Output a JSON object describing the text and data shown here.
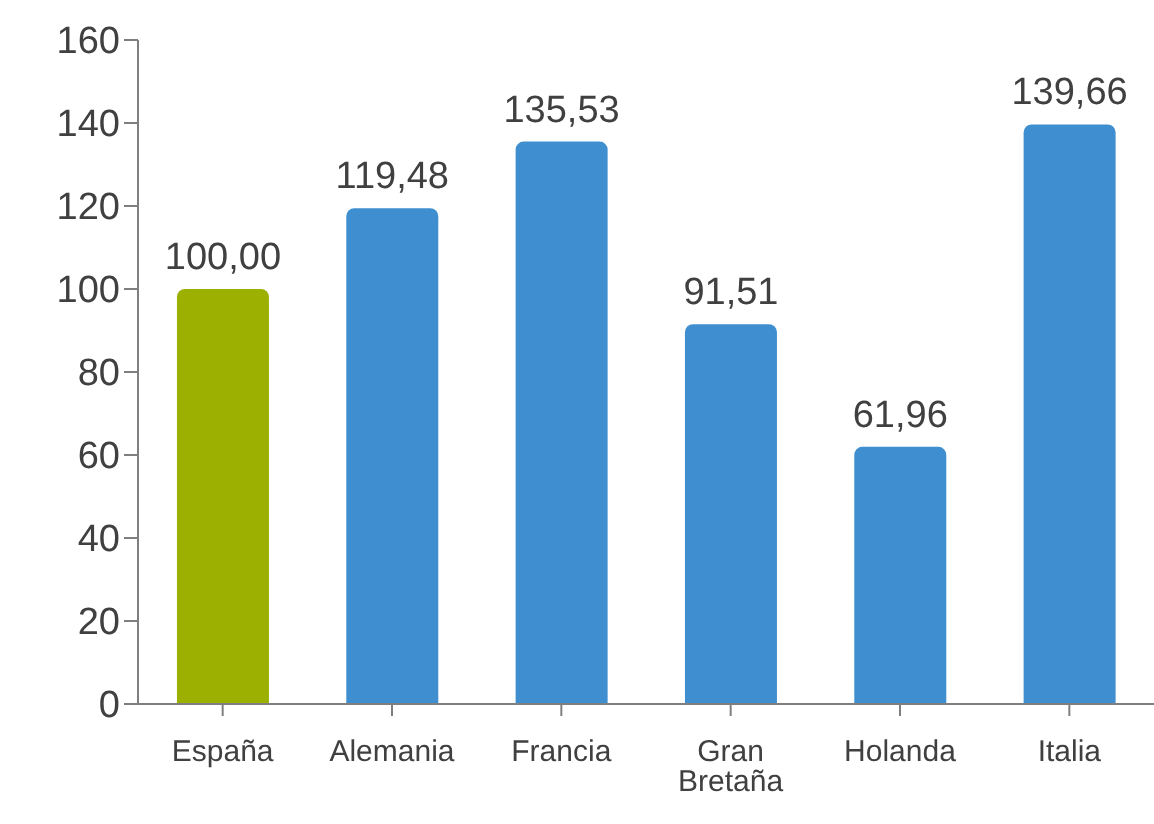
{
  "chart_data": {
    "type": "bar",
    "categories": [
      "España",
      "Alemania",
      "Francia",
      "Gran Bretaña",
      "Holanda",
      "Italia"
    ],
    "values": [
      100,
      119.48,
      135.53,
      91.51,
      61.96,
      139.66
    ],
    "value_labels": [
      "100,00",
      "119,48",
      "135,53",
      "91,51",
      "61,96",
      "139,66"
    ],
    "colors": [
      "#9bb000",
      "#3f8fd0",
      "#3f8fd0",
      "#3f8fd0",
      "#3f8fd0",
      "#3f8fd0"
    ],
    "ylim": [
      0,
      160
    ],
    "yticks": [
      0,
      20,
      40,
      60,
      80,
      100,
      120,
      140,
      160
    ],
    "grid": false,
    "legend": false
  }
}
